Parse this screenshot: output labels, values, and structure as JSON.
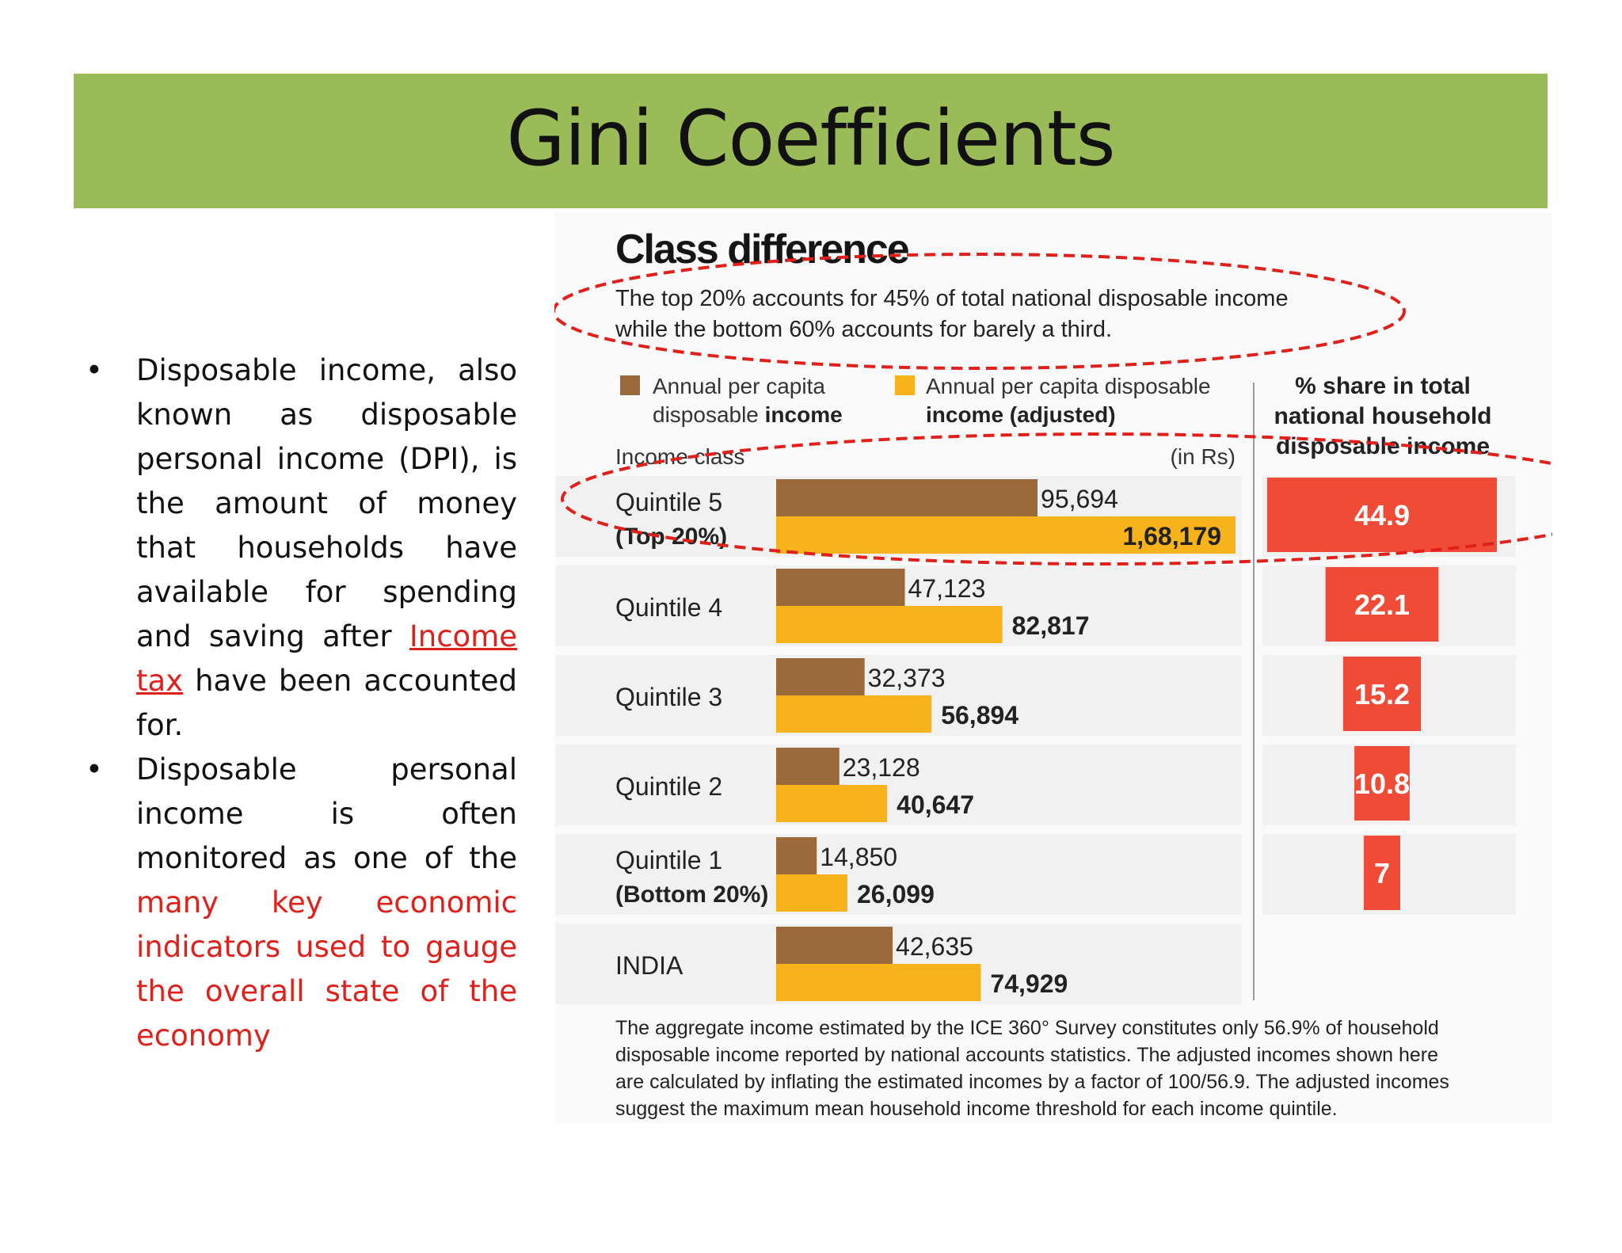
{
  "slide": {
    "title": "Gini Coefficients",
    "colors": {
      "title_bar": "#9bbb59",
      "highlight_text": "#e0201b"
    }
  },
  "bullets": [
    {
      "pre": "Disposable income, also known as disposable personal income (DPI), is the amount of money that households have available for spending and saving after ",
      "link": "Income tax",
      "post": " have been accounted for."
    },
    {
      "pre": "Disposable personal income is often monitored as one of the ",
      "red": "many key economic indicators used to gauge the overall state of the economy"
    }
  ],
  "chart_data": {
    "type": "bar",
    "title": "Class difference",
    "subtitle_lines": [
      "The top 20% accounts for 45% of total national disposable income",
      "while the bottom 60% accounts for barely a third."
    ],
    "legend": [
      {
        "line1": "Annual per capita",
        "line2_normal": "disposable ",
        "line2_bold": "income",
        "color": "#9b6a3b"
      },
      {
        "line1": "Annual per capita disposable",
        "line2_normal": "",
        "line2_bold": "income (adjusted)",
        "color": "#f7b21c"
      }
    ],
    "category_header": "Income class",
    "unit_label": "(in Rs)",
    "share_header": [
      "% share in total",
      "national household",
      "disposable income"
    ],
    "categories": [
      {
        "line1": "Quintile 5",
        "line2": "(Top 20%)"
      },
      {
        "line1": "Quintile 4",
        "line2": ""
      },
      {
        "line1": "Quintile 3",
        "line2": ""
      },
      {
        "line1": "Quintile 2",
        "line2": ""
      },
      {
        "line1": "Quintile 1",
        "line2": "(Bottom 20%)"
      },
      {
        "line1": "INDIA",
        "line2": ""
      }
    ],
    "series": [
      {
        "name": "Annual per capita disposable income",
        "values": [
          95694,
          47123,
          32373,
          23128,
          14850,
          42635
        ],
        "labels": [
          "95,694",
          "47,123",
          "32,373",
          "23,128",
          "14,850",
          "42,635"
        ]
      },
      {
        "name": "Annual per capita disposable income (adjusted)",
        "values": [
          168179,
          82817,
          56894,
          40647,
          26099,
          74929
        ],
        "labels": [
          "1,68,179",
          "82,817",
          "56,894",
          "40,647",
          "26,099",
          "74,929"
        ]
      }
    ],
    "share": {
      "values": [
        44.9,
        22.1,
        15.2,
        10.8,
        7
      ],
      "labels": [
        "44.9",
        "22.1",
        "15.2",
        "10.8",
        "7"
      ],
      "color": "#ef4b36"
    },
    "footnote": [
      "The aggregate income estimated by the ICE 360° Survey constitutes only 56.9% of household",
      "disposable income reported by national accounts statistics. The adjusted incomes shown here",
      "are calculated by inflating the estimated incomes by a factor of 100/56.9. The adjusted incomes",
      "suggest the maximum mean household income threshold for each income quintile."
    ]
  }
}
